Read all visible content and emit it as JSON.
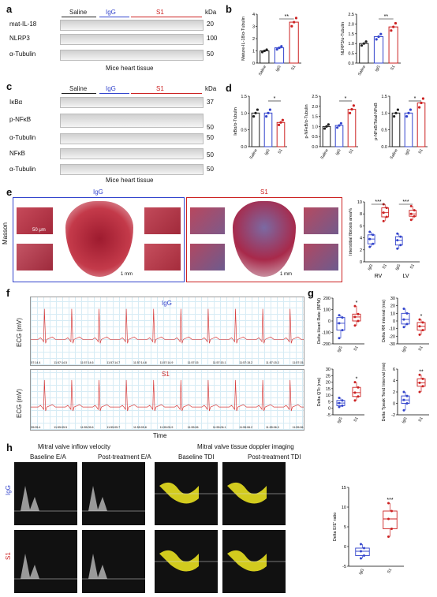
{
  "panels": {
    "a": {
      "label": "a",
      "groups": [
        "Saline",
        "IgG",
        "S1"
      ],
      "group_colors": [
        "#222222",
        "#3344cc",
        "#cc2222"
      ],
      "rows": [
        "mat-IL-18",
        "NLRP3",
        "α-Tubulin"
      ],
      "unit": "kDa",
      "markers": [
        "20",
        "100",
        "50"
      ],
      "caption": "Mice heart tissue"
    },
    "b": {
      "label": "b"
    },
    "c": {
      "label": "c",
      "groups": [
        "Saline",
        "IgG",
        "S1"
      ],
      "rows": [
        "IκBα",
        "p-NFκB",
        "α-Tubulin",
        "NFκB",
        "α-Tubulin"
      ],
      "unit": "kDa",
      "markers": [
        "37",
        "50",
        "50",
        "50",
        "50"
      ],
      "caption": "Mice heart tissue"
    },
    "d": {
      "label": "d"
    },
    "e": {
      "label": "e",
      "stain": "Masson",
      "left_title": "IgG",
      "right_title": "S1",
      "scale_small": "50 μm",
      "scale_big": "1 mm"
    },
    "f": {
      "label": "f",
      "top_title": "IgG",
      "bottom_title": "S1",
      "ylabel": "ECG (mV)",
      "xlabel": "Time",
      "top_ticks": [
        "11:57:14.4",
        "11:57:14.5",
        "11:57:14.6",
        "11:57:14.7",
        "11:57:14.8",
        "11:57:14.9",
        "11:57:15",
        "11:57:15.1",
        "11:57:15.2",
        "11:57:15.3",
        "11:57:15.4"
      ],
      "bottom_ticks": [
        "11:55:05.4",
        "11:55:05.5",
        "11:55:05.6",
        "11:55:05.7",
        "11:55:05.8",
        "11:55:05.9",
        "11:55:06",
        "11:55:06.1",
        "11:55:06.2",
        "11:55:06.3",
        "11:55:06.4"
      ]
    },
    "g": {
      "label": "g"
    },
    "h": {
      "label": "h",
      "header_left": "Mitral valve inflow velocity",
      "header_right": "Mitral valve tissue doppler imaging",
      "cols": [
        "Baseline E/A",
        "Post-treatment E/A",
        "Baseline TDI",
        "Post-treatment TDI"
      ],
      "rows": [
        "IgG",
        "S1"
      ],
      "ax1": [
        "600",
        "400",
        "200",
        "0"
      ],
      "ax2": [
        "500",
        "400",
        "300",
        "200",
        "100",
        "0"
      ],
      "ax3": [
        "30.0",
        "20.0",
        "10.0",
        "0.0",
        "-10.0",
        "-20.0",
        "-30.0",
        "-40.0"
      ],
      "ax4": [
        "40.0",
        "30.0",
        "20.0",
        "10.0",
        "0.0",
        "-20.0",
        "-40.0",
        "-60.0"
      ],
      "vel_label": "Velocity mm/s",
      "vel_label2": "Velocity cm/s"
    }
  },
  "chart_data": [
    {
      "type": "bar",
      "id": "b1",
      "categories": [
        "Saline",
        "IgG",
        "S1"
      ],
      "values": [
        1.0,
        1.25,
        3.35
      ],
      "ylabel": "Mature-IL-18/α-Tubulin",
      "ylim": [
        0,
        4
      ],
      "yticks": [
        "0",
        "1",
        "2",
        "3",
        "4"
      ],
      "sig": "**",
      "colors": [
        "#222222",
        "#3344cc",
        "#cc2222"
      ]
    },
    {
      "type": "bar",
      "id": "b2",
      "categories": [
        "Saline",
        "IgG",
        "S1"
      ],
      "values": [
        1.0,
        1.35,
        1.85
      ],
      "ylabel": "NLRP3/α-Tubulin",
      "ylim": [
        0,
        2.5
      ],
      "yticks": [
        "0.0",
        "0.5",
        "1.0",
        "1.5",
        "2.0",
        "2.5"
      ],
      "sig": "**",
      "colors": [
        "#222222",
        "#3344cc",
        "#cc2222"
      ]
    },
    {
      "type": "bar",
      "id": "d1",
      "categories": [
        "Saline",
        "IgG",
        "S1"
      ],
      "values": [
        1.0,
        1.0,
        0.72
      ],
      "ylabel": "IκBα/α-Tubulin",
      "ylim": [
        0,
        1.5
      ],
      "yticks": [
        "0.0",
        "0.5",
        "1.0",
        "1.5"
      ],
      "sig": "*",
      "colors": [
        "#222222",
        "#3344cc",
        "#cc2222"
      ]
    },
    {
      "type": "bar",
      "id": "d2",
      "categories": [
        "Saline",
        "IgG",
        "S1"
      ],
      "values": [
        1.0,
        1.05,
        1.85
      ],
      "ylabel": "p-NFκB/α-Tubulin",
      "ylim": [
        0,
        2.5
      ],
      "yticks": [
        "0.0",
        "0.5",
        "1.0",
        "1.5",
        "2.0",
        "2.5"
      ],
      "sig": "*",
      "colors": [
        "#222222",
        "#3344cc",
        "#cc2222"
      ]
    },
    {
      "type": "bar",
      "id": "d3",
      "categories": [
        "Saline",
        "IgG",
        "S1"
      ],
      "values": [
        1.0,
        1.0,
        1.3
      ],
      "ylabel": "p-NFκB/Total-NFκB",
      "ylim": [
        0,
        1.5
      ],
      "yticks": [
        "0.0",
        "0.5",
        "1.0",
        "1.5"
      ],
      "sig": "*",
      "colors": [
        "#222222",
        "#3344cc",
        "#cc2222"
      ]
    },
    {
      "type": "box",
      "id": "e1",
      "categories": [
        "IgG",
        "S1",
        "IgG",
        "S1"
      ],
      "groups": [
        "RV",
        "LV"
      ],
      "ylabel": "Interstitial fibrosis area%",
      "ylim": [
        0,
        10
      ],
      "yticks": [
        "0",
        "2",
        "4",
        "6",
        "8",
        "10"
      ],
      "boxes": [
        {
          "min": 2.5,
          "q1": 3.0,
          "med": 3.8,
          "q3": 4.5,
          "max": 5.0
        },
        {
          "min": 6.8,
          "q1": 7.5,
          "med": 8.2,
          "q3": 9.0,
          "max": 9.6
        },
        {
          "min": 2.2,
          "q1": 2.8,
          "med": 3.6,
          "q3": 4.2,
          "max": 4.7
        },
        {
          "min": 7.0,
          "q1": 7.6,
          "med": 8.0,
          "q3": 8.6,
          "max": 9.3
        }
      ],
      "sig": [
        "***",
        "***"
      ],
      "colors": [
        "#3344cc",
        "#cc2222",
        "#3344cc",
        "#cc2222"
      ]
    },
    {
      "type": "box",
      "id": "g1",
      "categories": [
        "IgG",
        "S1"
      ],
      "ylabel": "Delta Heart Rate (BPM)",
      "ylim": [
        -200,
        200
      ],
      "yticks": [
        "-200",
        "-100",
        "0",
        "100",
        "200"
      ],
      "boxes": [
        {
          "min": -150,
          "q1": -80,
          "med": -20,
          "q3": 30,
          "max": 50
        },
        {
          "min": -40,
          "q1": 0,
          "med": 35,
          "q3": 60,
          "max": 130
        }
      ],
      "sig": "*",
      "colors": [
        "#3344cc",
        "#cc2222"
      ]
    },
    {
      "type": "box",
      "id": "g2",
      "categories": [
        "IgG",
        "S1"
      ],
      "ylabel": "Delta RR interval (ms)",
      "ylim": [
        -30,
        30
      ],
      "yticks": [
        "-30",
        "-20",
        "-10",
        "0",
        "10",
        "20",
        "30"
      ],
      "boxes": [
        {
          "min": -8,
          "q1": -4,
          "med": 2,
          "q3": 10,
          "max": 16
        },
        {
          "min": -18,
          "q1": -12,
          "med": -7,
          "q3": -2,
          "max": 2
        }
      ],
      "sig": "*",
      "colors": [
        "#3344cc",
        "#cc2222"
      ]
    },
    {
      "type": "box",
      "id": "g3",
      "categories": [
        "IgG",
        "S1"
      ],
      "ylabel": "Delta QTc (ms)",
      "ylim": [
        -5,
        30
      ],
      "yticks": [
        "-5",
        "0",
        "5",
        "10",
        "15",
        "20",
        "25",
        "30"
      ],
      "boxes": [
        {
          "min": 1,
          "q1": 2,
          "med": 4,
          "q3": 6,
          "max": 8
        },
        {
          "min": 6,
          "q1": 9,
          "med": 12,
          "q3": 16,
          "max": 20
        }
      ],
      "sig": "*",
      "colors": [
        "#3344cc",
        "#cc2222"
      ]
    },
    {
      "type": "box",
      "id": "g4",
      "categories": [
        "IgG",
        "S1"
      ],
      "ylabel": "Delta Tpeak Tend Interval (ms)",
      "ylim": [
        -2,
        6
      ],
      "yticks": [
        "-2",
        "0",
        "2",
        "4",
        "6"
      ],
      "boxes": [
        {
          "min": -1.2,
          "q1": 0,
          "med": 0.6,
          "q3": 1.3,
          "max": 2
        },
        {
          "min": 2,
          "q1": 3,
          "med": 3.6,
          "q3": 4.3,
          "max": 5
        }
      ],
      "sig": "**",
      "colors": [
        "#3344cc",
        "#cc2222"
      ]
    },
    {
      "type": "box",
      "id": "h1",
      "categories": [
        "IgG",
        "S1"
      ],
      "ylabel": "Delta E/E' ratio",
      "ylim": [
        -5,
        15
      ],
      "yticks": [
        "-5",
        "0",
        "5",
        "10",
        "15"
      ],
      "boxes": [
        {
          "min": -3,
          "q1": -2.3,
          "med": -1.2,
          "q3": -0.4,
          "max": 0.6
        },
        {
          "min": 2.5,
          "q1": 4.5,
          "med": 7,
          "q3": 9,
          "max": 11
        }
      ],
      "sig": "***",
      "colors": [
        "#3344cc",
        "#cc2222"
      ]
    }
  ]
}
